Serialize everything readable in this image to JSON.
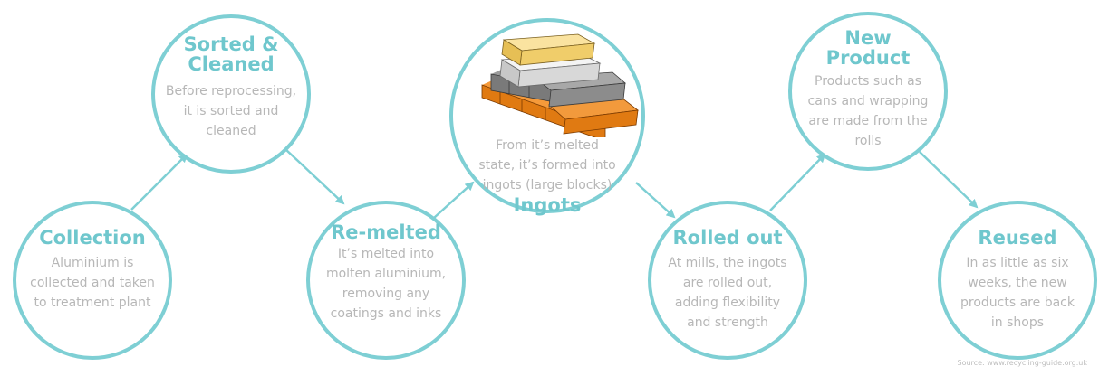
{
  "steps": [
    {
      "title": "Collection",
      "desc": "Aluminium is collected and taken to treatment plant"
    },
    {
      "title": "Sorted & Cleaned",
      "desc": "Before reprocessing, it is sorted and cleaned"
    },
    {
      "title": "Re-melted",
      "desc": "It’s melted into molten aluminium, removing any coatings and inks"
    },
    {
      "title": "Ingots",
      "desc": "From it’s melted state, it’s formed into ingots (large blocks)"
    },
    {
      "title": "Rolled out",
      "desc": "At mills, the ingots are rolled out, adding flexibility and strength"
    },
    {
      "title": "New Product",
      "desc": "Products such as cans and wrapping are made from the rolls"
    },
    {
      "title": "Reused",
      "desc": "In as little as six weeks, the new products are back in shops"
    }
  ],
  "source": "Source: www.recycling-guide.org.uk",
  "colors": {
    "accent": "#7ecfd4",
    "title": "#6fc7cd",
    "text": "#b7b7b7",
    "gold": "#f3d37a",
    "silver": "#dcdcdc",
    "gray": "#8a8a8a",
    "copper": "#e07a12"
  }
}
